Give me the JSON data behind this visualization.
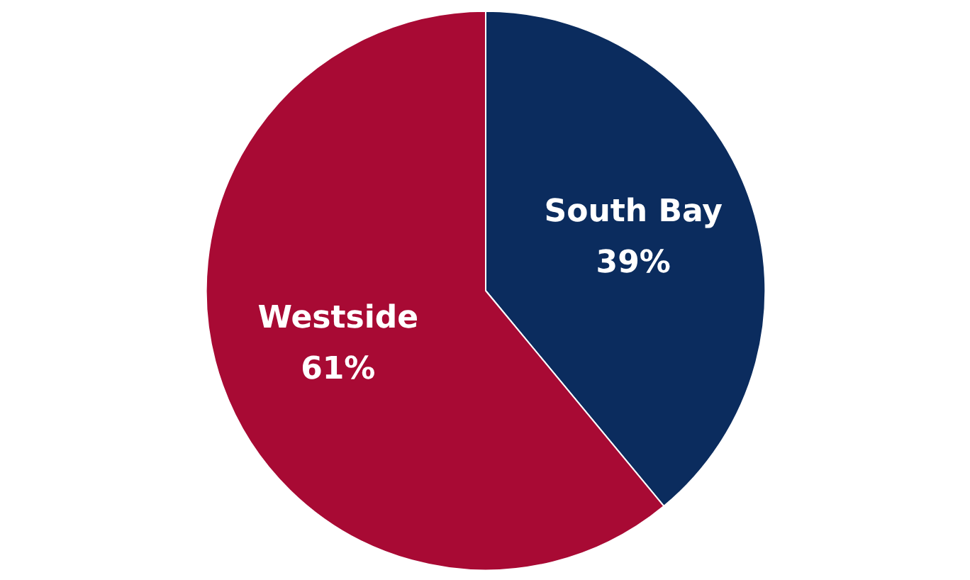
{
  "chart_data": {
    "type": "pie",
    "categories": [
      "South Bay",
      "Westside"
    ],
    "values": [
      39,
      61
    ],
    "colors": [
      "#0b2c5e",
      "#a80a34"
    ],
    "value_labels": [
      "39%",
      "61%"
    ]
  }
}
